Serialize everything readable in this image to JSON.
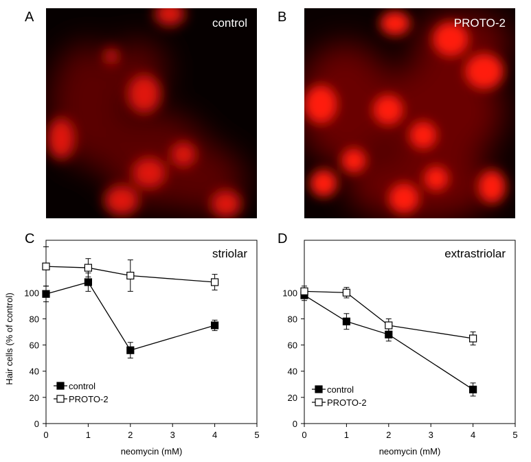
{
  "panels": {
    "a": {
      "letter": "A",
      "label": "control"
    },
    "b": {
      "letter": "B",
      "label": "PROTO-2"
    },
    "c": {
      "letter": "C"
    },
    "d": {
      "letter": "D"
    }
  },
  "colors": {
    "fluorescence": "#ff1a0a",
    "series_control": "#000000",
    "series_proto2": "#ffffff"
  },
  "chart_data": [
    {
      "type": "line",
      "title": "striolar",
      "xlabel": "neomycin (mM)",
      "ylabel": "Hair cells (% of control)",
      "xlim": [
        0,
        5
      ],
      "ylim": [
        0,
        140
      ],
      "xticks": [
        "0",
        "1",
        "2",
        "3",
        "4",
        "5"
      ],
      "yticks": [
        "0",
        "20",
        "40",
        "60",
        "80",
        "100"
      ],
      "legend_position": "bottom-left",
      "x": [
        0,
        1,
        2,
        4
      ],
      "series": [
        {
          "name": "control",
          "marker": "filled-square",
          "values": [
            99,
            108,
            56,
            75
          ],
          "error": [
            6,
            7,
            6,
            4
          ]
        },
        {
          "name": "PROTO-2",
          "marker": "open-square",
          "values": [
            120,
            119,
            113,
            108
          ],
          "error": [
            15,
            7,
            12,
            6
          ]
        }
      ]
    },
    {
      "type": "line",
      "title": "extrastriolar",
      "xlabel": "neomycin (mM)",
      "ylabel": "",
      "xlim": [
        0,
        5
      ],
      "ylim": [
        0,
        140
      ],
      "xticks": [
        "0",
        "1",
        "2",
        "3",
        "4",
        "5"
      ],
      "yticks": [
        "0",
        "20",
        "40",
        "60",
        "80",
        "100"
      ],
      "legend_position": "bottom-left",
      "x": [
        0,
        1,
        2,
        4
      ],
      "series": [
        {
          "name": "control",
          "marker": "filled-square",
          "values": [
            98,
            78,
            68,
            26
          ],
          "error": [
            4,
            6,
            5,
            5
          ]
        },
        {
          "name": "PROTO-2",
          "marker": "open-square",
          "values": [
            101,
            100,
            75,
            65
          ],
          "error": [
            4,
            4,
            5,
            5
          ]
        }
      ]
    }
  ]
}
